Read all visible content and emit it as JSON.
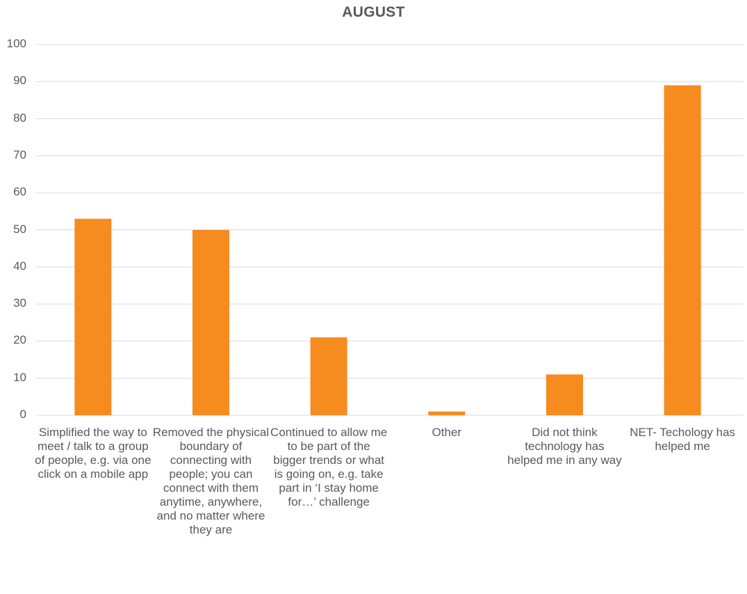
{
  "chart_data": {
    "type": "bar",
    "title": "AUGUST",
    "xlabel": "",
    "ylabel": "",
    "ylim": [
      0,
      100
    ],
    "yticks": [
      "0",
      "10",
      "20",
      "30",
      "40",
      "50",
      "60",
      "70",
      "80",
      "90",
      "100"
    ],
    "grid": true,
    "legend": "none",
    "bar_color": "#F68B1F",
    "categories": [
      "Simplified the way to meet / talk to a group of people, e.g. via one click on a mobile app",
      "Removed the physical boundary of connecting with people; you can connect with them anytime, anywhere, and no matter where they are",
      "Continued to allow me to be part of the bigger trends or what is going on, e.g. take part in ‘I stay home for…’ challenge",
      "Other",
      "Did not think technology has helped me in any way",
      "NET- Techology has helped me"
    ],
    "values": [
      53,
      50,
      21,
      1,
      11,
      89
    ]
  }
}
